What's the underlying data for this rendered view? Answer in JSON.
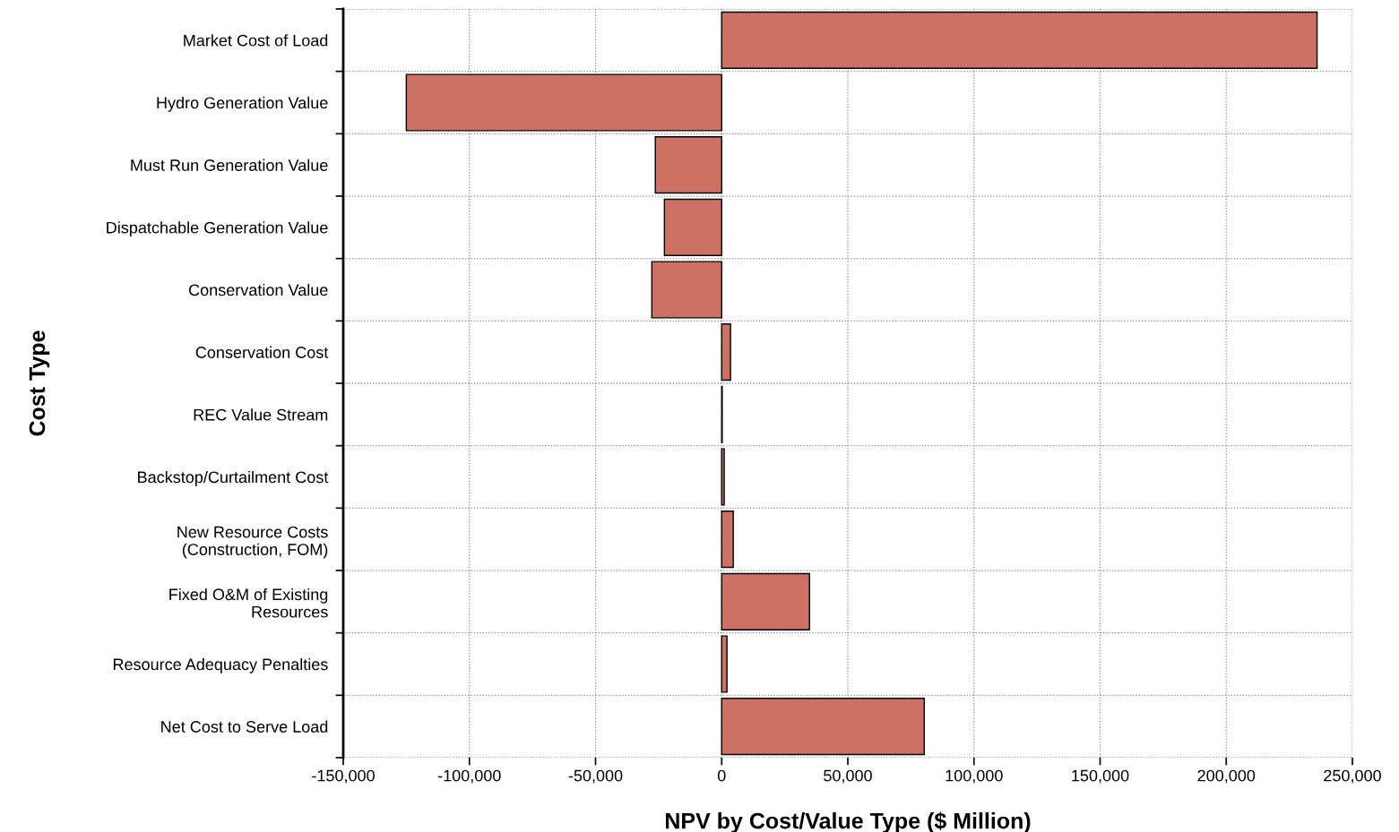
{
  "chart_data": {
    "type": "bar",
    "orientation": "horizontal",
    "xlabel": "NPV by Cost/Value Type ($ Million)",
    "ylabel": "Cost Type",
    "categories": [
      "Market Cost of Load",
      "Hydro Generation Value",
      "Must Run Generation Value",
      "Dispatchable Generation Value",
      "Conservation Value",
      "Conservation Cost",
      "REC Value Stream",
      "Backstop/Curtailment Cost",
      "New Resource Costs\n(Construction, FOM)",
      "Fixed O&M of Existing\nResources",
      "Resource Adequacy Penalties",
      "Net Cost to Serve Load"
    ],
    "values": [
      236000,
      -125000,
      -26300,
      -22700,
      -27700,
      3500,
      200,
      1000,
      4600,
      34800,
      2100,
      80300
    ],
    "color": "#cd7165",
    "xlim": [
      -150000,
      250000
    ],
    "xticks": [
      {
        "value": -150000,
        "label": "-150,000"
      },
      {
        "value": -100000,
        "label": "-100,000"
      },
      {
        "value": -50000,
        "label": "-50,000"
      },
      0,
      {
        "value": 50000,
        "label": "50,000"
      },
      {
        "value": 100000,
        "label": "100,000"
      },
      {
        "value": 150000,
        "label": "150,000"
      },
      {
        "value": 200000,
        "label": "200,000"
      },
      {
        "value": 250000,
        "label": "250,000"
      }
    ],
    "grid": true
  }
}
